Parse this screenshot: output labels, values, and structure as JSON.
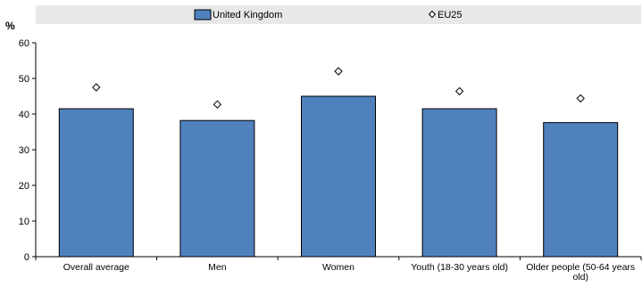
{
  "chart_data": {
    "type": "bar",
    "categories": [
      "Overall average",
      "Men",
      "Women",
      "Youth (18-30 years old)",
      "Older people (50-64 years old)"
    ],
    "category_lines": [
      [
        "Overall average"
      ],
      [
        "Men"
      ],
      [
        "Women"
      ],
      [
        "Youth (18-30 years old)"
      ],
      [
        "Older people (50-64 years",
        "old)"
      ]
    ],
    "series": [
      {
        "name": "United Kingdom",
        "marker": "bar",
        "color": "#4f81bd",
        "values": [
          41.5,
          38.2,
          45.0,
          41.5,
          37.6
        ]
      },
      {
        "name": "EU25",
        "marker": "diamond",
        "color": "#000000",
        "values": [
          47.5,
          42.7,
          52.0,
          46.4,
          44.4
        ]
      }
    ],
    "ylabel": "%",
    "ylim": [
      0,
      60
    ],
    "yticks": [
      0,
      10,
      20,
      30,
      40,
      50,
      60
    ],
    "legend_position": "top",
    "grid": false
  }
}
